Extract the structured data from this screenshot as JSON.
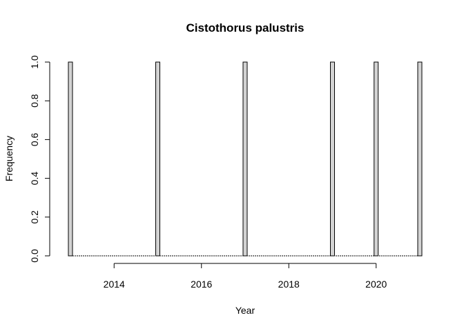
{
  "chart_data": {
    "type": "bar",
    "title": "Cistothorus palustris",
    "xlabel": "Year",
    "ylabel": "Frequency",
    "xlim": [
      2013,
      2021
    ],
    "ylim": [
      0,
      1
    ],
    "x_ticks": [
      2014,
      2016,
      2018,
      2020
    ],
    "y_ticks": [
      "0.0",
      "0.2",
      "0.4",
      "0.6",
      "0.8",
      "1.0"
    ],
    "bar_color": "#d3d3d3",
    "bars": [
      {
        "x": 2013,
        "value": 1
      },
      {
        "x": 2015,
        "value": 1
      },
      {
        "x": 2017,
        "value": 1
      },
      {
        "x": 2019,
        "value": 1
      },
      {
        "x": 2020,
        "value": 1
      },
      {
        "x": 2021,
        "value": 1
      }
    ]
  }
}
